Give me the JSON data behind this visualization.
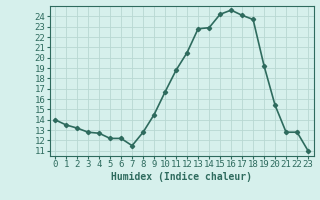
{
  "x": [
    0,
    1,
    2,
    3,
    4,
    5,
    6,
    7,
    8,
    9,
    10,
    11,
    12,
    13,
    14,
    15,
    16,
    17,
    18,
    19,
    20,
    21,
    22,
    23
  ],
  "y": [
    14.0,
    13.5,
    13.2,
    12.8,
    12.7,
    12.2,
    12.2,
    11.5,
    12.8,
    14.5,
    16.7,
    18.8,
    20.5,
    22.8,
    22.9,
    24.2,
    24.6,
    24.1,
    23.7,
    19.2,
    15.4,
    12.8,
    12.8,
    11.0
  ],
  "line_color": "#2e6b5e",
  "bg_color": "#d6f0ec",
  "grid_major_color": "#b8d8d2",
  "xlabel": "Humidex (Indice chaleur)",
  "ylabel_ticks": [
    11,
    12,
    13,
    14,
    15,
    16,
    17,
    18,
    19,
    20,
    21,
    22,
    23,
    24
  ],
  "ylim": [
    10.5,
    25.0
  ],
  "xlim": [
    -0.5,
    23.5
  ],
  "marker": "D",
  "marker_size": 2.2,
  "line_width": 1.2,
  "xlabel_fontsize": 7,
  "tick_fontsize": 6.5
}
